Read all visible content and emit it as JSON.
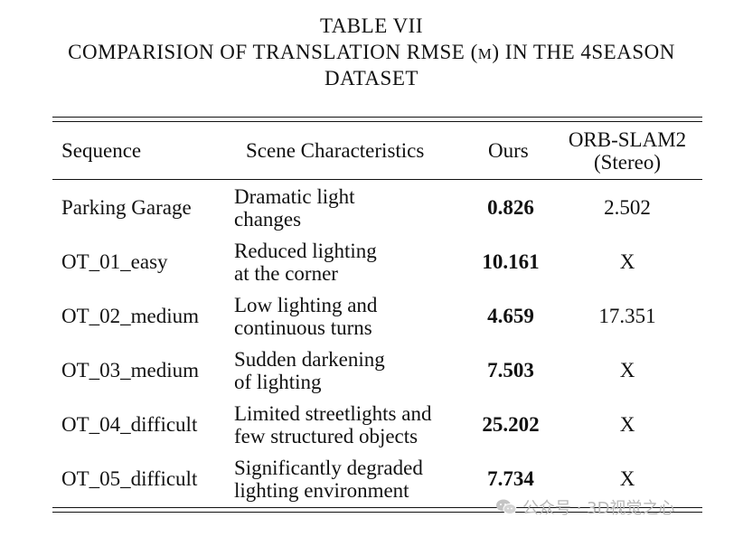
{
  "caption": {
    "label": "TABLE VII",
    "line2_a": "COMPARISION OF TRANSLATION RMSE (",
    "line2_unit": "M",
    "line2_b": ") IN THE 4SEASON",
    "line3": "DATASET"
  },
  "table": {
    "headers": {
      "sequence": "Sequence",
      "scene": "Scene Characteristics",
      "ours": "Ours",
      "orb_line1": "ORB-SLAM2",
      "orb_line2": "(Stereo)"
    },
    "rows": [
      {
        "sequence": "Parking Garage",
        "scene1": "Dramatic light",
        "scene2": "changes",
        "ours": "0.826",
        "orb": "2.502"
      },
      {
        "sequence": "OT_01_easy",
        "scene1": "Reduced lighting",
        "scene2": "at the corner",
        "ours": "10.161",
        "orb": "X"
      },
      {
        "sequence": "OT_02_medium",
        "scene1": "Low lighting and",
        "scene2": "continuous turns",
        "ours": "4.659",
        "orb": "17.351"
      },
      {
        "sequence": "OT_03_medium",
        "scene1": "Sudden darkening",
        "scene2": "of lighting",
        "ours": "7.503",
        "orb": "X"
      },
      {
        "sequence": "OT_04_difficult",
        "scene1": "Limited streetlights and",
        "scene2": "few structured objects",
        "ours": "25.202",
        "orb": "X"
      },
      {
        "sequence": "OT_05_difficult",
        "scene1": "Significantly degraded",
        "scene2": "lighting environment",
        "ours": "7.734",
        "orb": "X"
      }
    ]
  },
  "watermark": {
    "text": "公众号 · 3D视觉之心",
    "icon": "wechat-icon"
  }
}
